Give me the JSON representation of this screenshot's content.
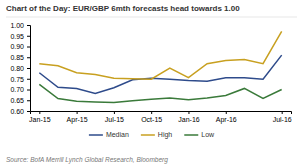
{
  "chart_data": {
    "type": "line",
    "title": "Chart of the Day: EUR/GBP 6mth forecasts head towards 1.00",
    "source": "Source: BofA Merrill Lynch Global Research, Bloomberg",
    "categories": [
      "Jan-15",
      null,
      "Apr-15",
      null,
      "Jul-15",
      null,
      "Oct-15",
      null,
      "Jan-16",
      null,
      "Apr-16",
      null,
      null,
      "Jul-16"
    ],
    "series": [
      {
        "name": "Median",
        "color": "#2e4b8b",
        "values": [
          0.778,
          0.71,
          0.705,
          0.682,
          0.708,
          0.745,
          0.752,
          0.748,
          0.742,
          0.738,
          0.755,
          0.755,
          0.748,
          0.86
        ]
      },
      {
        "name": "High",
        "color": "#c8a020",
        "values": [
          0.82,
          0.81,
          0.778,
          0.77,
          0.752,
          0.75,
          0.748,
          0.8,
          0.755,
          0.82,
          0.835,
          0.84,
          0.82,
          0.97
        ]
      },
      {
        "name": "Low",
        "color": "#3a7a3a",
        "values": [
          0.724,
          0.658,
          0.645,
          0.642,
          0.64,
          0.648,
          0.655,
          0.66,
          0.652,
          0.66,
          0.672,
          0.705,
          0.658,
          0.7
        ]
      }
    ],
    "ylim": [
      0.6,
      1.0
    ],
    "yticks": [
      {
        "value": 0.6,
        "label": "0.60"
      },
      0.65,
      {
        "value": 0.7,
        "label": "0.70"
      },
      0.75,
      {
        "value": 0.8,
        "label": "0.80"
      },
      0.85,
      {
        "value": 0.9,
        "label": "0.90"
      },
      0.95,
      {
        "value": 1.0,
        "label": "1.00"
      }
    ],
    "grid": false,
    "legend": "bottom"
  }
}
